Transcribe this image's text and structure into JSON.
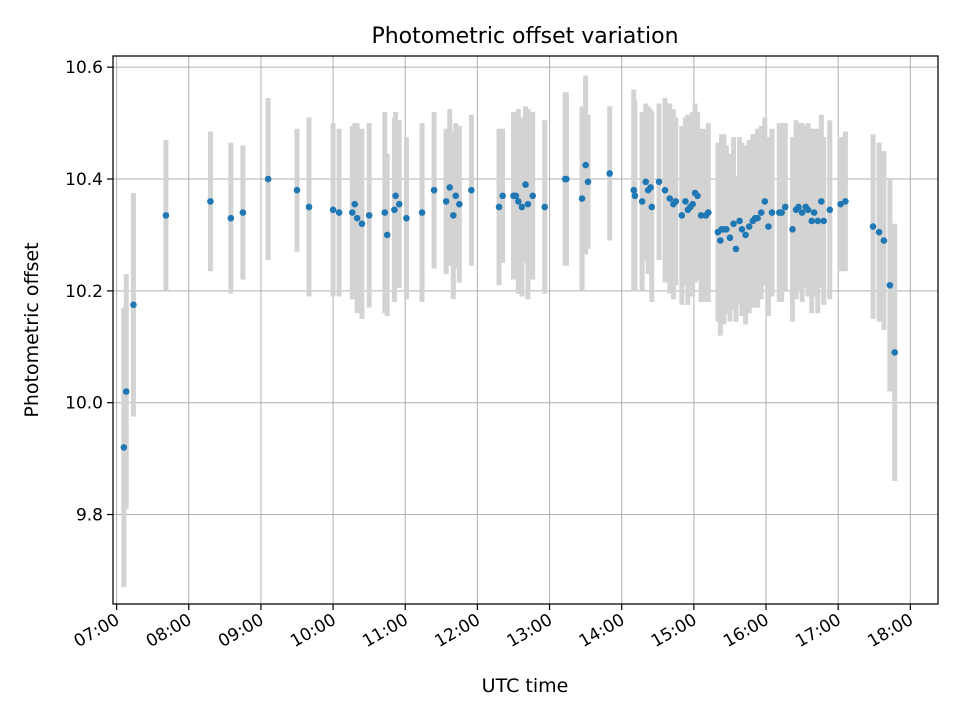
{
  "chart_data": {
    "type": "scatter",
    "title": "Photometric offset variation",
    "xlabel": "UTC time",
    "ylabel": "Photometric offset",
    "x_ticks": [
      "07:00",
      "08:00",
      "09:00",
      "10:00",
      "11:00",
      "12:00",
      "13:00",
      "14:00",
      "15:00",
      "16:00",
      "17:00",
      "18:00"
    ],
    "y_ticks": [
      "9.8",
      "10.0",
      "10.2",
      "10.4",
      "10.6"
    ],
    "xlim": [
      "06:57",
      "18:23"
    ],
    "ylim": [
      9.64,
      10.62
    ],
    "grid": true,
    "colors": {
      "marker": "#1f77b4",
      "errorbar": "#d3d3d3",
      "grid": "#b0b0b0"
    },
    "series": [
      {
        "x": [
          "07:06",
          "07:08",
          "07:14",
          "07:41",
          "08:18",
          "08:35",
          "08:45",
          "09:06",
          "09:30",
          "09:40",
          "10:00",
          "10:05",
          "10:16",
          "10:18",
          "10:20",
          "10:24",
          "10:30",
          "10:43",
          "10:45",
          "10:51",
          "10:52",
          "10:55",
          "11:01",
          "11:14",
          "11:24",
          "11:34",
          "11:37",
          "11:40",
          "11:42",
          "11:45",
          "11:55",
          "12:18",
          "12:21",
          "12:30",
          "12:32",
          "12:34",
          "12:37",
          "12:40",
          "12:42",
          "12:46",
          "12:56",
          "13:13",
          "13:14",
          "13:27",
          "13:30",
          "13:32",
          "13:50",
          "14:10",
          "14:11",
          "14:17",
          "14:20",
          "14:22",
          "14:24",
          "14:25",
          "14:31",
          "14:36",
          "14:40",
          "14:43",
          "14:45",
          "14:50",
          "14:53",
          "14:55",
          "14:57",
          "14:59",
          "15:01",
          "15:03",
          "15:06",
          "15:10",
          "15:12",
          "15:20",
          "15:22",
          "15:23",
          "15:25",
          "15:27",
          "15:30",
          "15:33",
          "15:35",
          "15:38",
          "15:40",
          "15:43",
          "15:46",
          "15:49",
          "15:51",
          "15:53",
          "15:56",
          "15:59",
          "16:02",
          "16:05",
          "16:11",
          "16:13",
          "16:16",
          "16:22",
          "16:25",
          "16:27",
          "16:30",
          "16:33",
          "16:35",
          "16:38",
          "16:40",
          "16:43",
          "16:46",
          "16:48",
          "16:53",
          "17:02",
          "17:06",
          "17:29",
          "17:34",
          "17:38",
          "17:43",
          "17:47"
        ],
        "y": [
          9.92,
          10.02,
          10.175,
          10.335,
          10.36,
          10.33,
          10.34,
          10.4,
          10.38,
          10.35,
          10.345,
          10.34,
          10.34,
          10.355,
          10.33,
          10.32,
          10.335,
          10.34,
          10.3,
          10.345,
          10.37,
          10.355,
          10.33,
          10.34,
          10.38,
          10.36,
          10.385,
          10.335,
          10.37,
          10.355,
          10.38,
          10.35,
          10.37,
          10.37,
          10.37,
          10.36,
          10.35,
          10.39,
          10.355,
          10.37,
          10.35,
          10.4,
          10.4,
          10.365,
          10.425,
          10.395,
          10.41,
          10.38,
          10.37,
          10.36,
          10.395,
          10.38,
          10.385,
          10.35,
          10.395,
          10.38,
          10.365,
          10.355,
          10.36,
          10.335,
          10.36,
          10.345,
          10.35,
          10.355,
          10.375,
          10.37,
          10.335,
          10.335,
          10.34,
          10.305,
          10.29,
          10.31,
          10.31,
          10.31,
          10.295,
          10.32,
          10.275,
          10.325,
          10.31,
          10.3,
          10.315,
          10.325,
          10.33,
          10.33,
          10.34,
          10.36,
          10.315,
          10.34,
          10.34,
          10.34,
          10.35,
          10.31,
          10.345,
          10.35,
          10.34,
          10.35,
          10.345,
          10.325,
          10.34,
          10.325,
          10.36,
          10.325,
          10.345,
          10.355,
          10.36,
          10.315,
          10.305,
          10.29,
          10.21,
          10.09
        ],
        "yerr": [
          0.25,
          0.21,
          0.2,
          0.135,
          0.125,
          0.135,
          0.12,
          0.145,
          0.11,
          0.16,
          0.155,
          0.15,
          0.155,
          0.145,
          0.17,
          0.17,
          0.165,
          0.18,
          0.145,
          0.165,
          0.15,
          0.15,
          0.145,
          0.16,
          0.14,
          0.13,
          0.14,
          0.15,
          0.13,
          0.14,
          0.135,
          0.14,
          0.12,
          0.15,
          0.14,
          0.165,
          0.16,
          0.14,
          0.17,
          0.15,
          0.155,
          0.155,
          0.155,
          0.165,
          0.16,
          0.12,
          0.12,
          0.18,
          0.17,
          0.16,
          0.14,
          0.15,
          0.14,
          0.17,
          0.14,
          0.165,
          0.17,
          0.17,
          0.15,
          0.16,
          0.15,
          0.17,
          0.16,
          0.165,
          0.16,
          0.15,
          0.155,
          0.155,
          0.16,
          0.16,
          0.17,
          0.17,
          0.17,
          0.15,
          0.15,
          0.155,
          0.13,
          0.15,
          0.155,
          0.16,
          0.155,
          0.155,
          0.14,
          0.16,
          0.155,
          0.15,
          0.16,
          0.15,
          0.16,
          0.16,
          0.15,
          0.165,
          0.16,
          0.15,
          0.16,
          0.145,
          0.155,
          0.165,
          0.15,
          0.165,
          0.155,
          0.15,
          0.16,
          0.12,
          0.125,
          0.165,
          0.16,
          0.16,
          0.19,
          0.23
        ]
      }
    ]
  }
}
